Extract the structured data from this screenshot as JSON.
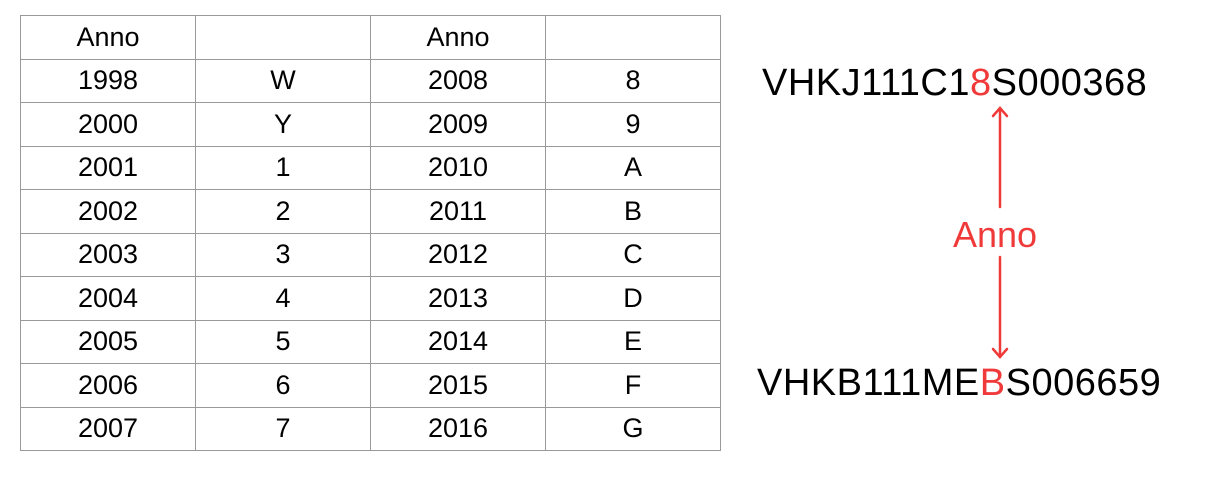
{
  "table": {
    "header": [
      "Anno",
      "",
      "Anno",
      ""
    ],
    "rows": [
      [
        "1998",
        "W",
        "2008",
        "8"
      ],
      [
        "2000",
        "Y",
        "2009",
        "9"
      ],
      [
        "2001",
        "1",
        "2010",
        "A"
      ],
      [
        "2002",
        "2",
        "2011",
        "B"
      ],
      [
        "2003",
        "3",
        "2012",
        "C"
      ],
      [
        "2004",
        "4",
        "2013",
        "D"
      ],
      [
        "2005",
        "5",
        "2014",
        "E"
      ],
      [
        "2006",
        "6",
        "2015",
        "F"
      ],
      [
        "2007",
        "7",
        "2016",
        "G"
      ]
    ]
  },
  "diagram": {
    "vin_top": {
      "before": "VHKJ111C1",
      "highlight": "8",
      "after": "S000368"
    },
    "vin_bottom": {
      "before": "VHKB111ME",
      "highlight": "B",
      "after": "S006659"
    },
    "label": "Anno",
    "highlight_color": "#f03a3a"
  }
}
